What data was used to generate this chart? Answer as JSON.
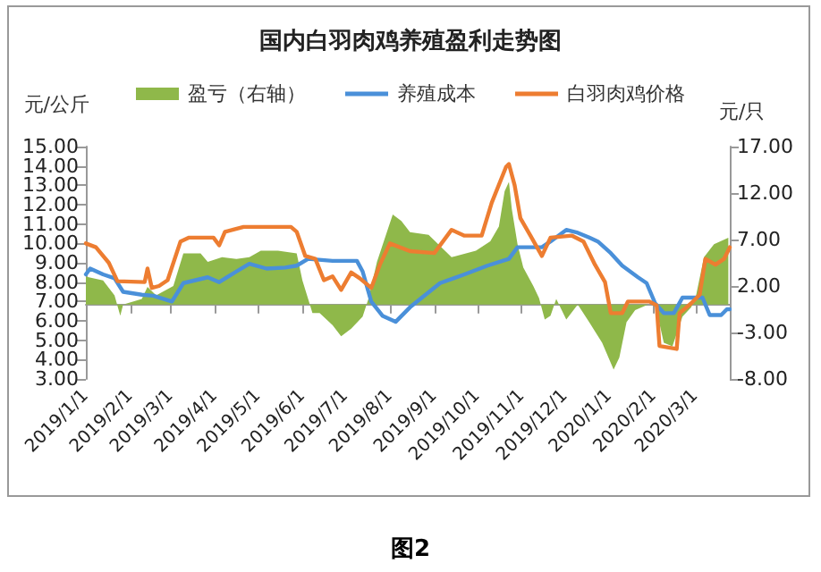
{
  "chart_data": {
    "type": "line",
    "title": "国内白羽肉鸡养殖盈利走势图",
    "ylabel": "元/公斤",
    "y2label": "元/只",
    "annotations": [
      "图2"
    ],
    "legend": "top",
    "grid": false,
    "marker": "none",
    "line_style": "solid",
    "xlim": [
      "2019-01-01",
      "2020-03-25"
    ],
    "xticks": [
      {
        "value": "2019-01-01",
        "label": "2019/1/1"
      },
      {
        "value": "2019-02-01",
        "label": "2019/2/1"
      },
      {
        "value": "2019-03-01",
        "label": "2019/3/1"
      },
      {
        "value": "2019-04-01",
        "label": "2019/4/1"
      },
      {
        "value": "2019-05-01",
        "label": "2019/5/1"
      },
      {
        "value": "2019-06-01",
        "label": "2019/6/1"
      },
      {
        "value": "2019-07-01",
        "label": "2019/7/1"
      },
      {
        "value": "2019-08-01",
        "label": "2019/8/1"
      },
      {
        "value": "2019-09-01",
        "label": "2019/9/1"
      },
      {
        "value": "2019-10-01",
        "label": "2019/10/1"
      },
      {
        "value": "2019-11-01",
        "label": "2019/11/1"
      },
      {
        "value": "2019-12-01",
        "label": "2019/12/1"
      },
      {
        "value": "2020-01-01",
        "label": "2020/1/1"
      },
      {
        "value": "2020-02-01",
        "label": "2020/2/1"
      },
      {
        "value": "2020-03-01",
        "label": "2020/3/1"
      }
    ],
    "ylim": [
      3,
      15
    ],
    "yticks": [
      {
        "value": 3,
        "label": "3.00"
      },
      {
        "value": 4,
        "label": "4.00"
      },
      {
        "value": 5,
        "label": "5.00"
      },
      {
        "value": 6,
        "label": "6.00"
      },
      {
        "value": 7,
        "label": "7.00"
      },
      {
        "value": 8,
        "label": "8.00"
      },
      {
        "value": 9,
        "label": "9.00"
      },
      {
        "value": 10,
        "label": "10.00"
      },
      {
        "value": 11,
        "label": "11.00"
      },
      {
        "value": 12,
        "label": "12.00"
      },
      {
        "value": 13,
        "label": "13.00"
      },
      {
        "value": 14,
        "label": "14.00"
      },
      {
        "value": 15,
        "label": "15.00"
      }
    ],
    "y2lim": [
      -8,
      17
    ],
    "y2ticks": [
      {
        "value": -8,
        "label": "-8.00"
      },
      {
        "value": -3,
        "label": "-3.00"
      },
      {
        "value": 2,
        "label": "2.00"
      },
      {
        "value": 7,
        "label": "7.00"
      },
      {
        "value": 12,
        "label": "12.00"
      },
      {
        "value": 17,
        "label": "17.00"
      }
    ],
    "series": [
      {
        "name": "盈亏（右轴）",
        "type": "area",
        "axis": "y2",
        "color": "#8fb84a",
        "x": [
          "2019-01-01",
          "2019-01-13",
          "2019-01-21",
          "2019-01-25",
          "2019-01-27",
          "2019-02-09",
          "2019-02-13",
          "2019-02-19",
          "2019-03-03",
          "2019-03-10",
          "2019-03-22",
          "2019-03-27",
          "2019-04-06",
          "2019-04-16",
          "2019-04-25",
          "2019-05-03",
          "2019-05-15",
          "2019-05-28",
          "2019-06-01",
          "2019-06-05",
          "2019-06-08",
          "2019-06-13",
          "2019-06-22",
          "2019-06-28",
          "2019-07-05",
          "2019-07-13",
          "2019-07-17",
          "2019-07-23",
          "2019-08-03",
          "2019-08-09",
          "2019-08-15",
          "2019-08-28",
          "2019-09-13",
          "2019-09-30",
          "2019-10-10",
          "2019-10-16",
          "2019-10-20",
          "2019-10-23",
          "2019-10-25",
          "2019-10-29",
          "2019-11-02",
          "2019-11-09",
          "2019-11-13",
          "2019-11-17",
          "2019-11-21",
          "2019-11-25",
          "2019-12-02",
          "2019-12-10",
          "2019-12-18",
          "2019-12-27",
          "2020-01-04",
          "2020-01-08",
          "2020-01-13",
          "2020-01-19",
          "2020-01-28",
          "2020-02-02",
          "2020-02-08",
          "2020-02-14",
          "2020-02-21",
          "2020-02-27",
          "2020-03-01",
          "2020-03-07",
          "2020-03-14",
          "2020-03-24"
        ],
        "values": [
          3.0,
          2.6,
          1.0,
          -1.2,
          0,
          0.6,
          1.9,
          1.0,
          2.0,
          5.5,
          5.5,
          4.6,
          5.1,
          4.9,
          5.1,
          5.8,
          5.8,
          5.5,
          2.6,
          0.6,
          -0.9,
          -0.9,
          -2.2,
          -3.4,
          -2.6,
          -1.3,
          0.6,
          4.6,
          9.7,
          9.0,
          7.8,
          7.5,
          5.1,
          5.8,
          6.8,
          8.4,
          12.2,
          13.2,
          10.3,
          6.5,
          4.0,
          2.0,
          0.7,
          -1.6,
          -1.2,
          0.6,
          -1.6,
          0,
          -1.9,
          -4.1,
          -7.0,
          -5.7,
          -1.9,
          -0.6,
          0,
          0,
          -4.1,
          -4.5,
          -1.3,
          -0.3,
          0.6,
          5.1,
          6.5,
          7.2
        ]
      },
      {
        "name": "养殖成本",
        "color": "#4a90d9",
        "x": [
          "2019-01-01",
          "2019-01-04",
          "2019-01-13",
          "2019-01-21",
          "2019-01-27",
          "2019-02-09",
          "2019-02-17",
          "2019-03-02",
          "2019-03-10",
          "2019-03-27",
          "2019-04-04",
          "2019-04-16",
          "2019-04-25",
          "2019-05-07",
          "2019-05-20",
          "2019-05-28",
          "2019-06-05",
          "2019-06-22",
          "2019-07-09",
          "2019-07-13",
          "2019-07-19",
          "2019-07-27",
          "2019-08-05",
          "2019-08-15",
          "2019-09-05",
          "2019-09-22",
          "2019-10-08",
          "2019-10-23",
          "2019-10-29",
          "2019-11-15",
          "2019-11-21",
          "2019-12-02",
          "2019-12-10",
          "2019-12-18",
          "2019-12-24",
          "2020-01-02",
          "2020-01-10",
          "2020-01-21",
          "2020-01-27",
          "2020-02-02",
          "2020-02-08",
          "2020-02-15",
          "2020-02-21",
          "2020-03-06",
          "2020-03-11",
          "2020-03-19",
          "2020-03-23",
          "2020-03-25"
        ],
        "values": [
          8.4,
          8.7,
          8.4,
          8.2,
          7.5,
          7.35,
          7.3,
          7.0,
          7.95,
          8.25,
          8.0,
          8.55,
          8.95,
          8.7,
          8.75,
          8.85,
          9.2,
          9.1,
          9.1,
          8.55,
          7.0,
          6.25,
          5.95,
          6.7,
          7.95,
          8.4,
          8.85,
          9.2,
          9.8,
          9.8,
          10.1,
          10.7,
          10.55,
          10.3,
          10.1,
          9.5,
          8.85,
          8.25,
          7.95,
          6.9,
          6.4,
          6.4,
          7.2,
          7.2,
          6.3,
          6.3,
          6.6,
          6.6
        ]
      },
      {
        "name": "白羽肉鸡价格",
        "color": "#ed7d31",
        "x": [
          "2019-01-01",
          "2019-01-08",
          "2019-01-17",
          "2019-01-23",
          "2019-02-11",
          "2019-02-13",
          "2019-02-16",
          "2019-02-21",
          "2019-02-27",
          "2019-03-08",
          "2019-03-14",
          "2019-03-31",
          "2019-04-04",
          "2019-04-08",
          "2019-04-21",
          "2019-05-24",
          "2019-05-28",
          "2019-06-03",
          "2019-06-10",
          "2019-06-16",
          "2019-06-22",
          "2019-06-28",
          "2019-07-05",
          "2019-07-11",
          "2019-07-19",
          "2019-07-25",
          "2019-08-01",
          "2019-08-15",
          "2019-09-01",
          "2019-09-13",
          "2019-09-22",
          "2019-10-04",
          "2019-10-11",
          "2019-10-21",
          "2019-10-23",
          "2019-10-27",
          "2019-10-31",
          "2019-11-07",
          "2019-11-15",
          "2019-11-21",
          "2019-12-06",
          "2019-12-14",
          "2019-12-22",
          "2019-12-29",
          "2020-01-02",
          "2020-01-10",
          "2020-01-14",
          "2020-01-29",
          "2020-02-03",
          "2020-02-05",
          "2020-02-17",
          "2020-02-19",
          "2020-02-27",
          "2020-03-04",
          "2020-03-08",
          "2020-03-15",
          "2020-03-21",
          "2020-03-25"
        ],
        "values": [
          10.0,
          9.8,
          9.0,
          8.05,
          8.0,
          8.7,
          7.7,
          7.8,
          8.1,
          10.1,
          10.3,
          10.3,
          9.9,
          10.6,
          10.85,
          10.85,
          10.6,
          9.35,
          9.2,
          8.1,
          8.3,
          7.6,
          8.5,
          8.2,
          7.7,
          8.9,
          10.0,
          9.6,
          9.5,
          10.7,
          10.4,
          10.4,
          12.1,
          13.95,
          14.1,
          13.0,
          11.3,
          10.4,
          9.35,
          10.3,
          10.4,
          10.1,
          8.9,
          8.0,
          6.4,
          6.4,
          7.0,
          7.0,
          6.8,
          4.7,
          4.55,
          6.4,
          6.9,
          7.35,
          9.2,
          8.9,
          9.2,
          9.8
        ]
      }
    ]
  }
}
